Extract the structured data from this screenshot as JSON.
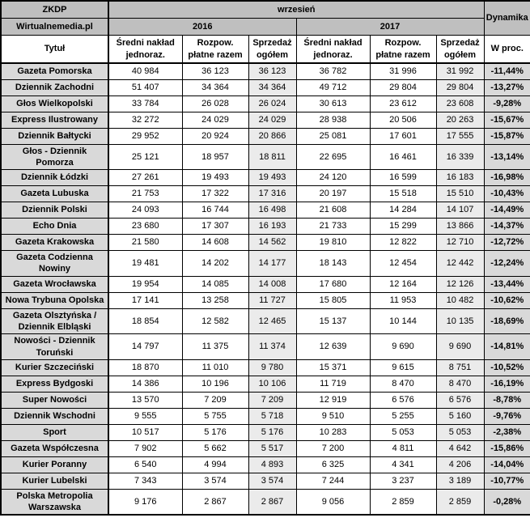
{
  "chart_data": {
    "type": "table",
    "source": "ZKDP",
    "site": "Wirtualnemedia.pl",
    "period": "wrzesień",
    "years": [
      "2016",
      "2017"
    ],
    "dynamics_label": "Dynamika",
    "title_column_label": "Tytuł",
    "metric_labels": [
      "Średni nakład jednoraz.",
      "Rozpow. płatne razem",
      "Sprzedaż ogółem"
    ],
    "percent_label": "W proc.",
    "rows": [
      {
        "title": "Gazeta Pomorska",
        "cells": [
          "40 984",
          "36 123",
          "36 123",
          "36 782",
          "31 996",
          "31 992"
        ],
        "pct": "-11,44%"
      },
      {
        "title": "Dziennik Zachodni",
        "cells": [
          "51 407",
          "34 364",
          "34 364",
          "49 712",
          "29 804",
          "29 804"
        ],
        "pct": "-13,27%"
      },
      {
        "title": "Głos Wielkopolski",
        "cells": [
          "33 784",
          "26 028",
          "26 024",
          "30 613",
          "23 612",
          "23 608"
        ],
        "pct": "-9,28%"
      },
      {
        "title": "Express Ilustrowany",
        "cells": [
          "32 272",
          "24 029",
          "24 029",
          "28 938",
          "20 506",
          "20 263"
        ],
        "pct": "-15,67%"
      },
      {
        "title": "Dziennik Bałtycki",
        "cells": [
          "29 952",
          "20 924",
          "20 866",
          "25 081",
          "17 601",
          "17 555"
        ],
        "pct": "-15,87%"
      },
      {
        "title": "Głos - Dziennik Pomorza",
        "cells": [
          "25 121",
          "18 957",
          "18 811",
          "22 695",
          "16 461",
          "16 339"
        ],
        "pct": "-13,14%"
      },
      {
        "title": "Dziennik Łódzki",
        "cells": [
          "27 261",
          "19 493",
          "19 493",
          "24 120",
          "16 599",
          "16 183"
        ],
        "pct": "-16,98%"
      },
      {
        "title": "Gazeta Lubuska",
        "cells": [
          "21 753",
          "17 322",
          "17 316",
          "20 197",
          "15 518",
          "15 510"
        ],
        "pct": "-10,43%"
      },
      {
        "title": "Dziennik Polski",
        "cells": [
          "24 093",
          "16 744",
          "16 498",
          "21 608",
          "14 284",
          "14 107"
        ],
        "pct": "-14,49%"
      },
      {
        "title": "Echo Dnia",
        "cells": [
          "23 680",
          "17 307",
          "16 193",
          "21 733",
          "15 299",
          "13 866"
        ],
        "pct": "-14,37%"
      },
      {
        "title": "Gazeta Krakowska",
        "cells": [
          "21 580",
          "14 608",
          "14 562",
          "19 810",
          "12 822",
          "12 710"
        ],
        "pct": "-12,72%"
      },
      {
        "title": "Gazeta Codzienna Nowiny",
        "cells": [
          "19 481",
          "14 202",
          "14 177",
          "18 143",
          "12 454",
          "12 442"
        ],
        "pct": "-12,24%"
      },
      {
        "title": "Gazeta Wrocławska",
        "cells": [
          "19 954",
          "14 085",
          "14 008",
          "17 680",
          "12 164",
          "12 126"
        ],
        "pct": "-13,44%"
      },
      {
        "title": "Nowa Trybuna Opolska",
        "cells": [
          "17 141",
          "13 258",
          "11 727",
          "15 805",
          "11 953",
          "10 482"
        ],
        "pct": "-10,62%"
      },
      {
        "title": "Gazeta Olsztyńska / Dziennik Elbląski",
        "cells": [
          "18 854",
          "12 582",
          "12 465",
          "15 137",
          "10 144",
          "10 135"
        ],
        "pct": "-18,69%"
      },
      {
        "title": "Nowości - Dziennik Toruński",
        "cells": [
          "14 797",
          "11 375",
          "11 374",
          "12 639",
          "9 690",
          "9 690"
        ],
        "pct": "-14,81%"
      },
      {
        "title": "Kurier Szczeciński",
        "cells": [
          "18 870",
          "11 010",
          "9 780",
          "15 371",
          "9 615",
          "8 751"
        ],
        "pct": "-10,52%"
      },
      {
        "title": "Express Bydgoski",
        "cells": [
          "14 386",
          "10 196",
          "10 106",
          "11 719",
          "8 470",
          "8 470"
        ],
        "pct": "-16,19%"
      },
      {
        "title": "Super Nowości",
        "cells": [
          "13 570",
          "7 209",
          "7 209",
          "12 919",
          "6 576",
          "6 576"
        ],
        "pct": "-8,78%"
      },
      {
        "title": "Dziennik Wschodni",
        "cells": [
          "9 555",
          "5 755",
          "5 718",
          "9 510",
          "5 255",
          "5 160"
        ],
        "pct": "-9,76%"
      },
      {
        "title": "Sport",
        "cells": [
          "10 517",
          "5 176",
          "5 176",
          "10 283",
          "5 053",
          "5 053"
        ],
        "pct": "-2,38%"
      },
      {
        "title": "Gazeta Współczesna",
        "cells": [
          "7 902",
          "5 662",
          "5 517",
          "7 200",
          "4 811",
          "4 642"
        ],
        "pct": "-15,86%"
      },
      {
        "title": "Kurier Poranny",
        "cells": [
          "6 540",
          "4 994",
          "4 893",
          "6 325",
          "4 341",
          "4 206"
        ],
        "pct": "-14,04%"
      },
      {
        "title": "Kurier Lubelski",
        "cells": [
          "7 343",
          "3 574",
          "3 574",
          "7 244",
          "3 237",
          "3 189"
        ],
        "pct": "-10,77%"
      },
      {
        "title": "Polska Metropolia Warszawska",
        "cells": [
          "9 176",
          "2 867",
          "2 867",
          "9 056",
          "2 859",
          "2 859"
        ],
        "pct": "-0,28%"
      }
    ]
  },
  "colors": {
    "header_bg": "#bfbfbf",
    "title_column_bg": "#d9d9d9",
    "sales_column_bg": "#ebebeb",
    "percent_column_bg": "#d9d9d9",
    "border": "#000000"
  }
}
